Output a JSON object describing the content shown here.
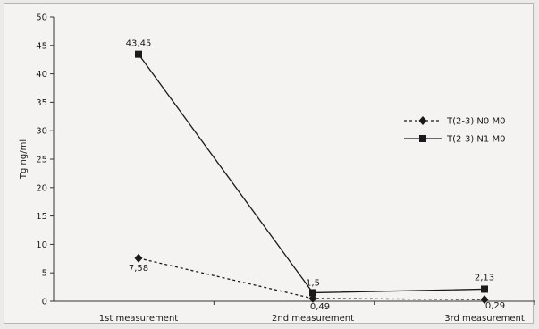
{
  "chart_data": {
    "type": "line",
    "categories": [
      "1st measurement",
      "2nd measurement",
      "3rd measurement"
    ],
    "ylabel": "Tg ng/ml",
    "xlabel": "",
    "ylim": [
      0,
      50
    ],
    "yticks": [
      0,
      5,
      10,
      15,
      20,
      25,
      30,
      35,
      40,
      45,
      50
    ],
    "grid": false,
    "legend": "right",
    "series": [
      {
        "name": "T(2-3) N0 M0",
        "values": [
          7.58,
          0.49,
          0.29
        ],
        "labels": [
          "7,58",
          "0,49",
          "0,29"
        ],
        "style": "dotted",
        "marker": "diamond",
        "color": "#1a1a1a"
      },
      {
        "name": "T(2-3) N1 M0",
        "values": [
          43.45,
          1.5,
          2.13
        ],
        "labels": [
          "43,45",
          "1,5",
          "2,13"
        ],
        "style": "solid",
        "marker": "square",
        "color": "#1a1a1a"
      }
    ]
  }
}
